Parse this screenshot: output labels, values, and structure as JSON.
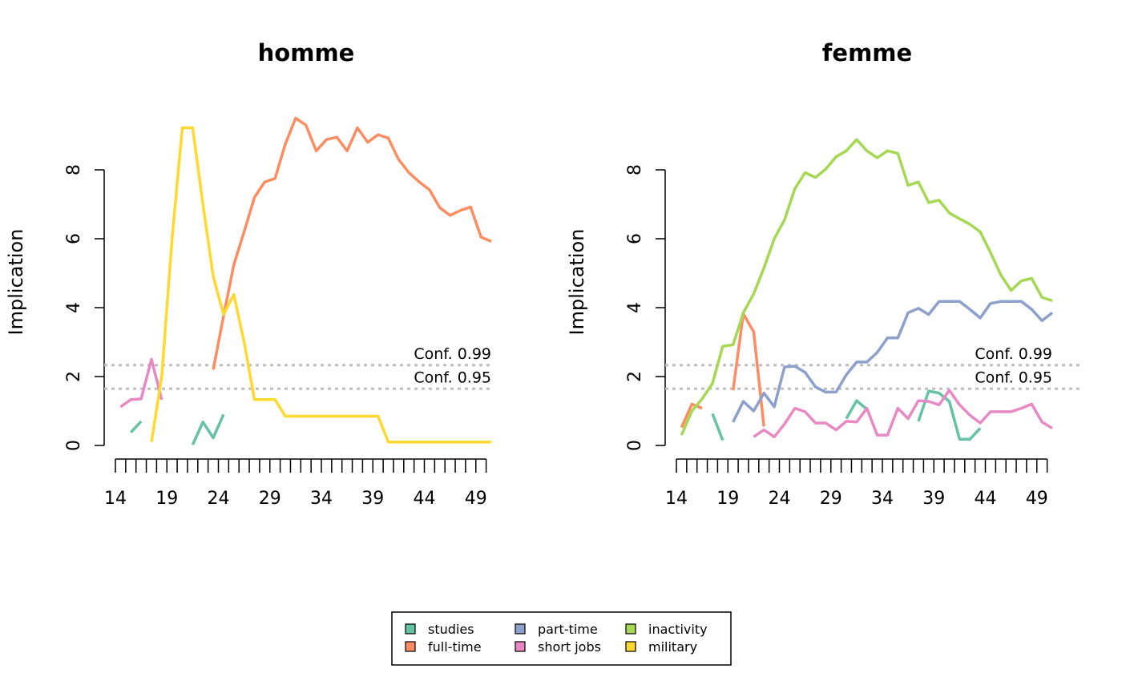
{
  "legend": {
    "items": [
      {
        "label": "studies",
        "color": "#66C2A5"
      },
      {
        "label": "full-time",
        "color": "#FC8D62"
      },
      {
        "label": "part-time",
        "color": "#8DA0CB"
      },
      {
        "label": "short jobs",
        "color": "#E78AC3"
      },
      {
        "label": "inactivity",
        "color": "#A6D854"
      },
      {
        "label": "military",
        "color": "#FFD92F"
      }
    ]
  },
  "chart_data": [
    {
      "type": "line",
      "title": "homme",
      "xlabel": "",
      "ylabel": "Implication",
      "xlim": [
        14,
        50
      ],
      "ylim": [
        0,
        9.5
      ],
      "x_tick_labels": [
        "14",
        "19",
        "24",
        "29",
        "34",
        "39",
        "44",
        "49"
      ],
      "y_tick_labels": [
        "0",
        "2",
        "4",
        "6",
        "8"
      ],
      "reference_lines": [
        {
          "label": "Conf.  0.99",
          "value": 2.33,
          "color": "#BEBEBE",
          "style": "dotted"
        },
        {
          "label": "Conf.  0.95",
          "value": 1.645,
          "color": "#BEBEBE",
          "style": "dotted"
        }
      ],
      "series": [
        {
          "name": "studies",
          "color": "#66C2A5",
          "segments": [
            [
              [
                15.5,
                0.38
              ],
              [
                16.5,
                0.7
              ]
            ],
            [
              [
                21.5,
                0.02
              ],
              [
                22.5,
                0.68
              ],
              [
                23.5,
                0.22
              ],
              [
                24.5,
                0.9
              ]
            ]
          ]
        },
        {
          "name": "full-time",
          "color": "#FC8D62",
          "segments": [
            [
              [
                23.5,
                2.2
              ],
              [
                24.5,
                3.75
              ],
              [
                25.5,
                5.25
              ],
              [
                26.5,
                6.2
              ],
              [
                27.5,
                7.2
              ],
              [
                28.5,
                7.65
              ],
              [
                29.5,
                7.75
              ],
              [
                30.5,
                8.75
              ],
              [
                31.5,
                9.5
              ],
              [
                32.5,
                9.3
              ],
              [
                33.5,
                8.55
              ],
              [
                34.5,
                8.88
              ],
              [
                35.5,
                8.95
              ],
              [
                36.5,
                8.55
              ],
              [
                37.5,
                9.22
              ],
              [
                38.5,
                8.8
              ],
              [
                39.5,
                9.02
              ],
              [
                40.5,
                8.92
              ],
              [
                41.5,
                8.3
              ],
              [
                42.5,
                7.92
              ],
              [
                43.5,
                7.65
              ],
              [
                44.5,
                7.42
              ],
              [
                45.5,
                6.9
              ],
              [
                46.5,
                6.68
              ],
              [
                47.5,
                6.82
              ],
              [
                48.5,
                6.92
              ],
              [
                49.5,
                6.05
              ],
              [
                50.5,
                5.92
              ]
            ]
          ]
        },
        {
          "name": "short jobs",
          "color": "#E78AC3",
          "segments": [
            [
              [
                14.5,
                1.12
              ],
              [
                15.5,
                1.33
              ],
              [
                16.5,
                1.35
              ],
              [
                17.5,
                2.5
              ],
              [
                18.5,
                1.33
              ]
            ]
          ]
        },
        {
          "name": "military",
          "color": "#FFD92F",
          "segments": [
            [
              [
                17.5,
                0.1
              ],
              [
                18.5,
                2.0
              ],
              [
                19.5,
                6.0
              ],
              [
                20.5,
                9.22
              ],
              [
                21.5,
                9.22
              ],
              [
                22.5,
                7.0
              ],
              [
                23.5,
                4.9
              ],
              [
                24.5,
                3.8
              ],
              [
                25.5,
                4.38
              ],
              [
                26.5,
                3.0
              ],
              [
                27.5,
                1.33
              ],
              [
                28.5,
                1.33
              ],
              [
                29.5,
                1.33
              ],
              [
                30.5,
                0.85
              ],
              [
                31.5,
                0.85
              ],
              [
                32.5,
                0.85
              ],
              [
                33.5,
                0.85
              ],
              [
                34.5,
                0.85
              ],
              [
                35.5,
                0.85
              ],
              [
                36.5,
                0.85
              ],
              [
                37.5,
                0.85
              ],
              [
                38.5,
                0.85
              ],
              [
                39.5,
                0.85
              ],
              [
                40.5,
                0.1
              ],
              [
                41.5,
                0.1
              ],
              [
                42.5,
                0.1
              ],
              [
                43.5,
                0.1
              ],
              [
                44.5,
                0.1
              ],
              [
                45.5,
                0.1
              ],
              [
                46.5,
                0.1
              ],
              [
                47.5,
                0.1
              ],
              [
                48.5,
                0.1
              ],
              [
                49.5,
                0.1
              ],
              [
                50.5,
                0.1
              ]
            ]
          ]
        }
      ]
    },
    {
      "type": "line",
      "title": "femme",
      "xlabel": "",
      "ylabel": "Implication",
      "xlim": [
        14,
        50
      ],
      "ylim": [
        0,
        9.5
      ],
      "x_tick_labels": [
        "14",
        "19",
        "24",
        "29",
        "34",
        "39",
        "44",
        "49"
      ],
      "y_tick_labels": [
        "0",
        "2",
        "4",
        "6",
        "8"
      ],
      "reference_lines": [
        {
          "label": "Conf.  0.99",
          "value": 2.33,
          "color": "#BEBEBE",
          "style": "dotted"
        },
        {
          "label": "Conf.  0.95",
          "value": 1.645,
          "color": "#BEBEBE",
          "style": "dotted"
        }
      ],
      "series": [
        {
          "name": "studies",
          "color": "#66C2A5",
          "segments": [
            [
              [
                17.5,
                0.92
              ],
              [
                18.5,
                0.15
              ]
            ],
            [
              [
                30.5,
                0.78
              ],
              [
                31.5,
                1.3
              ],
              [
                32.5,
                1.05
              ]
            ],
            [
              [
                37.5,
                0.7
              ],
              [
                38.5,
                1.58
              ],
              [
                39.5,
                1.52
              ],
              [
                40.5,
                1.28
              ],
              [
                41.5,
                0.18
              ],
              [
                42.5,
                0.18
              ],
              [
                43.5,
                0.5
              ]
            ]
          ]
        },
        {
          "name": "full-time",
          "color": "#FC8D62",
          "segments": [
            [
              [
                14.5,
                0.52
              ],
              [
                15.5,
                1.2
              ],
              [
                16.5,
                1.08
              ]
            ],
            [
              [
                19.5,
                1.6
              ],
              [
                20.5,
                3.82
              ],
              [
                21.5,
                3.3
              ],
              [
                22.5,
                0.55
              ]
            ]
          ]
        },
        {
          "name": "part-time",
          "color": "#8DA0CB",
          "segments": [
            [
              [
                19.5,
                0.68
              ],
              [
                20.5,
                1.28
              ],
              [
                21.5,
                1.0
              ],
              [
                22.5,
                1.52
              ],
              [
                23.5,
                1.12
              ],
              [
                24.5,
                2.28
              ],
              [
                25.5,
                2.3
              ],
              [
                26.5,
                2.12
              ],
              [
                27.5,
                1.7
              ],
              [
                28.5,
                1.55
              ],
              [
                29.5,
                1.55
              ],
              [
                30.5,
                2.05
              ],
              [
                31.5,
                2.42
              ],
              [
                32.5,
                2.42
              ],
              [
                33.5,
                2.7
              ],
              [
                34.5,
                3.12
              ],
              [
                35.5,
                3.12
              ],
              [
                36.5,
                3.85
              ],
              [
                37.5,
                3.98
              ],
              [
                38.5,
                3.8
              ],
              [
                39.5,
                4.18
              ],
              [
                40.5,
                4.18
              ],
              [
                41.5,
                4.18
              ],
              [
                42.5,
                3.95
              ],
              [
                43.5,
                3.7
              ],
              [
                44.5,
                4.12
              ],
              [
                45.5,
                4.18
              ],
              [
                46.5,
                4.18
              ],
              [
                47.5,
                4.18
              ],
              [
                48.5,
                3.95
              ],
              [
                49.5,
                3.62
              ],
              [
                50.5,
                3.85
              ]
            ]
          ]
        },
        {
          "name": "short jobs",
          "color": "#E78AC3",
          "segments": [
            [
              [
                21.5,
                0.25
              ],
              [
                22.5,
                0.45
              ],
              [
                23.5,
                0.25
              ],
              [
                24.5,
                0.62
              ],
              [
                25.5,
                1.08
              ],
              [
                26.5,
                0.98
              ],
              [
                27.5,
                0.65
              ],
              [
                28.5,
                0.65
              ],
              [
                29.5,
                0.45
              ],
              [
                30.5,
                0.7
              ],
              [
                31.5,
                0.68
              ],
              [
                32.5,
                1.08
              ],
              [
                33.5,
                0.3
              ],
              [
                34.5,
                0.3
              ],
              [
                35.5,
                1.08
              ],
              [
                36.5,
                0.78
              ],
              [
                37.5,
                1.3
              ],
              [
                38.5,
                1.28
              ],
              [
                39.5,
                1.18
              ],
              [
                40.5,
                1.6
              ],
              [
                41.5,
                1.18
              ],
              [
                42.5,
                0.88
              ],
              [
                43.5,
                0.65
              ],
              [
                44.5,
                0.98
              ],
              [
                45.5,
                0.98
              ],
              [
                46.5,
                0.98
              ],
              [
                47.5,
                1.08
              ],
              [
                48.5,
                1.2
              ],
              [
                49.5,
                0.68
              ],
              [
                50.5,
                0.5
              ]
            ]
          ]
        },
        {
          "name": "inactivity",
          "color": "#A6D854",
          "segments": [
            [
              [
                14.5,
                0.3
              ],
              [
                15.5,
                1.0
              ],
              [
                16.5,
                1.35
              ],
              [
                17.5,
                1.8
              ],
              [
                18.5,
                2.88
              ],
              [
                19.5,
                2.92
              ],
              [
                20.5,
                3.85
              ],
              [
                21.5,
                4.4
              ],
              [
                22.5,
                5.15
              ],
              [
                23.5,
                6.0
              ],
              [
                24.5,
                6.55
              ],
              [
                25.5,
                7.45
              ],
              [
                26.5,
                7.92
              ],
              [
                27.5,
                7.78
              ],
              [
                28.5,
                8.02
              ],
              [
                29.5,
                8.38
              ],
              [
                30.5,
                8.55
              ],
              [
                31.5,
                8.88
              ],
              [
                32.5,
                8.55
              ],
              [
                33.5,
                8.35
              ],
              [
                34.5,
                8.55
              ],
              [
                35.5,
                8.48
              ],
              [
                36.5,
                7.55
              ],
              [
                37.5,
                7.65
              ],
              [
                38.5,
                7.05
              ],
              [
                39.5,
                7.12
              ],
              [
                40.5,
                6.75
              ],
              [
                41.5,
                6.58
              ],
              [
                42.5,
                6.42
              ],
              [
                43.5,
                6.2
              ],
              [
                44.5,
                5.6
              ],
              [
                45.5,
                4.95
              ],
              [
                46.5,
                4.5
              ],
              [
                47.5,
                4.78
              ],
              [
                48.5,
                4.85
              ],
              [
                49.5,
                4.3
              ],
              [
                50.5,
                4.2
              ]
            ]
          ]
        }
      ]
    }
  ]
}
